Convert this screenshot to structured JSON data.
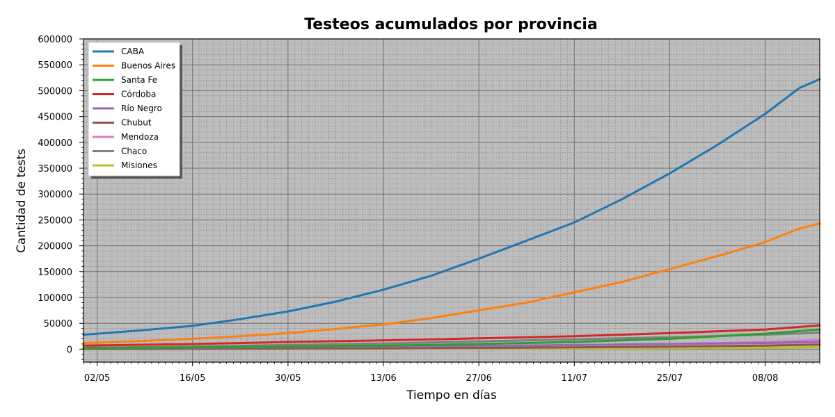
{
  "chart_data": {
    "type": "line",
    "title": "Testeos acumulados por provincia",
    "xlabel": "Tiempo en días",
    "ylabel": "Cantidad de tests",
    "ylim": [
      -25000,
      600000
    ],
    "yticks": [
      0,
      50000,
      100000,
      150000,
      200000,
      250000,
      300000,
      350000,
      400000,
      450000,
      500000,
      550000,
      600000
    ],
    "xlim": [
      "2020-04-30",
      "2020-08-16"
    ],
    "xticks": [
      "2020-05-02",
      "2020-05-16",
      "2020-05-30",
      "2020-06-13",
      "2020-06-27",
      "2020-07-11",
      "2020-07-25",
      "2020-08-08"
    ],
    "xtick_labels": [
      "02/05",
      "16/05",
      "30/05",
      "13/06",
      "27/06",
      "11/07",
      "25/07",
      "08/08"
    ],
    "grid": true,
    "legend_position": "top-left",
    "background": "#bdbdbd",
    "series": [
      {
        "name": "CABA",
        "color": "#1f77b4",
        "x": [
          "2020-04-30",
          "2020-05-09",
          "2020-05-16",
          "2020-05-23",
          "2020-05-30",
          "2020-06-06",
          "2020-06-13",
          "2020-06-20",
          "2020-06-27",
          "2020-07-04",
          "2020-07-11",
          "2020-07-18",
          "2020-07-25",
          "2020-08-01",
          "2020-08-08",
          "2020-08-13",
          "2020-08-16"
        ],
        "y": [
          28000,
          37000,
          45000,
          58000,
          73000,
          92000,
          115000,
          142000,
          175000,
          210000,
          245000,
          290000,
          340000,
          395000,
          455000,
          505000,
          522000
        ]
      },
      {
        "name": "Buenos Aires",
        "color": "#ff7f0e",
        "x": [
          "2020-04-30",
          "2020-05-09",
          "2020-05-16",
          "2020-05-23",
          "2020-05-30",
          "2020-06-06",
          "2020-06-13",
          "2020-06-20",
          "2020-06-27",
          "2020-07-04",
          "2020-07-11",
          "2020-07-18",
          "2020-07-25",
          "2020-08-01",
          "2020-08-08",
          "2020-08-13",
          "2020-08-16"
        ],
        "y": [
          12000,
          16000,
          20000,
          25000,
          31000,
          39000,
          48000,
          60000,
          75000,
          90000,
          110000,
          130000,
          155000,
          180000,
          207000,
          233000,
          243000
        ]
      },
      {
        "name": "Santa Fe",
        "color": "#2ca02c",
        "x": [
          "2020-04-30",
          "2020-05-16",
          "2020-05-30",
          "2020-06-13",
          "2020-06-27",
          "2020-07-11",
          "2020-07-25",
          "2020-08-08",
          "2020-08-16"
        ],
        "y": [
          2000,
          3500,
          5000,
          7000,
          10000,
          14000,
          20000,
          30000,
          38000
        ]
      },
      {
        "name": "Córdoba",
        "color": "#d62728",
        "x": [
          "2020-04-30",
          "2020-05-16",
          "2020-05-30",
          "2020-06-13",
          "2020-06-27",
          "2020-07-11",
          "2020-07-25",
          "2020-08-08",
          "2020-08-16"
        ],
        "y": [
          7000,
          10000,
          14000,
          17000,
          21000,
          25000,
          31000,
          38000,
          46000
        ]
      },
      {
        "name": "Río Negro",
        "color": "#9467bd",
        "x": [
          "2020-04-30",
          "2020-05-16",
          "2020-05-30",
          "2020-06-13",
          "2020-06-27",
          "2020-07-11",
          "2020-07-25",
          "2020-08-08",
          "2020-08-16"
        ],
        "y": [
          2000,
          3000,
          4000,
          5000,
          6000,
          8000,
          10000,
          12000,
          14000
        ]
      },
      {
        "name": "Chubut",
        "color": "#8c564b",
        "x": [
          "2020-04-30",
          "2020-05-16",
          "2020-05-30",
          "2020-06-13",
          "2020-06-27",
          "2020-07-11",
          "2020-07-25",
          "2020-08-08",
          "2020-08-16"
        ],
        "y": [
          500,
          800,
          1200,
          1800,
          2500,
          3500,
          5000,
          7000,
          9000
        ]
      },
      {
        "name": "Mendoza",
        "color": "#e377c2",
        "x": [
          "2020-04-30",
          "2020-05-16",
          "2020-05-30",
          "2020-06-13",
          "2020-06-27",
          "2020-07-11",
          "2020-07-25",
          "2020-08-08",
          "2020-08-16"
        ],
        "y": [
          1500,
          2500,
          3500,
          4500,
          6000,
          8000,
          10000,
          14000,
          18000
        ]
      },
      {
        "name": "Chaco",
        "color": "#7f7f7f",
        "x": [
          "2020-04-30",
          "2020-05-16",
          "2020-05-30",
          "2020-06-13",
          "2020-06-27",
          "2020-07-11",
          "2020-07-25",
          "2020-08-08",
          "2020-08-16"
        ],
        "y": [
          3000,
          5000,
          8000,
          11000,
          15000,
          19000,
          23000,
          28000,
          32000
        ]
      },
      {
        "name": "Misiones",
        "color": "#bcbd22",
        "x": [
          "2020-04-30",
          "2020-05-16",
          "2020-05-30",
          "2020-06-13",
          "2020-06-27",
          "2020-07-11",
          "2020-07-25",
          "2020-08-08",
          "2020-08-16"
        ],
        "y": [
          300,
          500,
          800,
          1000,
          1300,
          1700,
          2200,
          3000,
          4000
        ]
      }
    ]
  }
}
